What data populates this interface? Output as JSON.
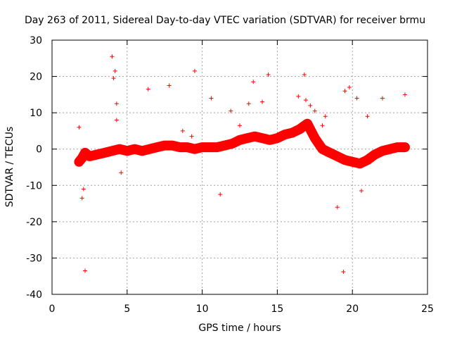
{
  "chart_data": {
    "type": "scatter",
    "title": "Day 263 of 2011, Sidereal Day-to-day VTEC variation (SDTVAR) for receiver brmu",
    "xlabel": "GPS time / hours",
    "ylabel": "SDTVAR / TECUs",
    "xlim": [
      0,
      25
    ],
    "ylim": [
      -40,
      30
    ],
    "x_ticks": [
      0,
      5,
      10,
      15,
      20,
      25
    ],
    "y_ticks": [
      -40,
      -30,
      -20,
      -10,
      0,
      10,
      20,
      30
    ],
    "x_tick_labels": [
      "0",
      "5",
      "10",
      "15",
      "20",
      "25"
    ],
    "y_tick_labels": [
      "-40",
      "-30",
      "-20",
      "-10",
      "0",
      "10",
      "20",
      "30"
    ],
    "grid": true,
    "marker": "+",
    "color": "#ff0000",
    "series": [
      {
        "name": "SDTVAR",
        "x": [
          1.8,
          2.0,
          2.2,
          2.5,
          3.0,
          3.5,
          4.0,
          4.5,
          5.0,
          5.5,
          6.0,
          6.5,
          7.0,
          7.5,
          8.0,
          8.5,
          9.0,
          9.5,
          10.0,
          10.5,
          11.0,
          11.5,
          12.0,
          12.5,
          13.0,
          13.5,
          14.0,
          14.5,
          15.0,
          15.5,
          16.0,
          16.5,
          17.0,
          17.5,
          18.0,
          18.5,
          19.0,
          19.5,
          20.0,
          20.5,
          21.0,
          21.5,
          22.0,
          22.5,
          23.0,
          23.5,
          4.0,
          4.1,
          4.2,
          4.3,
          2.2,
          19.4,
          9.5,
          14.4,
          16.8,
          19.8,
          20.3,
          6.4,
          7.8,
          2.0,
          19.0,
          19.5,
          4.3,
          21.0,
          10.6,
          11.9,
          13.4,
          2.1,
          1.8,
          23.5,
          22.0,
          16.4,
          18.0,
          17.2,
          16.9,
          17.5,
          18.2,
          12.5,
          13.1,
          14.0,
          8.7,
          9.3,
          4.6,
          20.6,
          15.4,
          11.2
        ],
        "y": [
          -3.5,
          -2.5,
          -1.0,
          -2.0,
          -1.5,
          -1.0,
          -0.5,
          0.0,
          -0.5,
          0.0,
          -0.5,
          0.0,
          0.5,
          1.0,
          1.0,
          0.5,
          0.5,
          0.0,
          0.5,
          0.5,
          0.5,
          1.0,
          1.5,
          2.5,
          3.0,
          3.5,
          3.0,
          2.5,
          3.0,
          4.0,
          4.5,
          5.5,
          7.0,
          3.0,
          0.0,
          -1.0,
          -2.0,
          -3.0,
          -3.5,
          -4.0,
          -3.0,
          -1.5,
          -0.5,
          0.0,
          0.5,
          0.5,
          25.5,
          19.5,
          21.5,
          12.5,
          -33.5,
          -33.8,
          21.5,
          20.5,
          20.5,
          17.0,
          14.0,
          16.5,
          17.5,
          -13.5,
          -16.0,
          16.0,
          8.0,
          9.0,
          14.0,
          10.5,
          18.5,
          -11.0,
          6.0,
          15.0,
          14.0,
          14.5,
          6.5,
          12.0,
          13.5,
          10.5,
          9.0,
          6.5,
          12.5,
          13.0,
          5.0,
          3.5,
          -6.5,
          -11.5,
          4.5,
          -12.5
        ]
      }
    ]
  }
}
